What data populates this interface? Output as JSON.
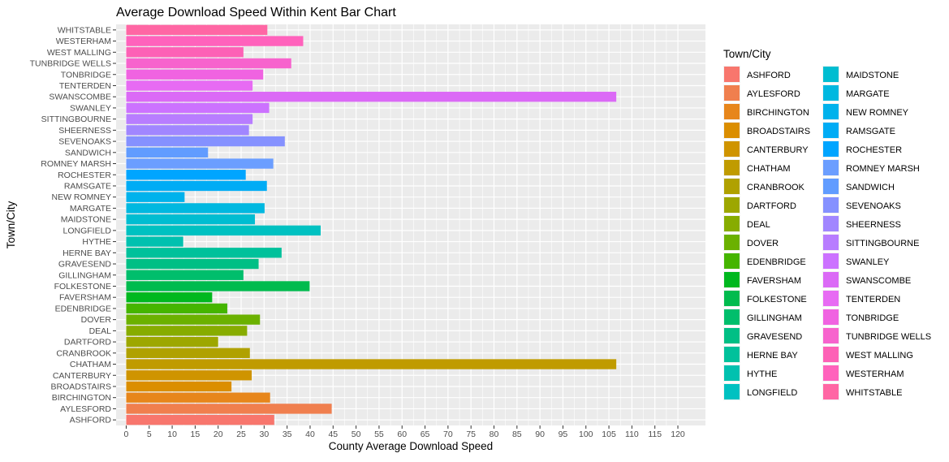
{
  "chart_data": {
    "type": "bar",
    "orientation": "horizontal",
    "title": "Average Download Speed Within Kent Bar Chart",
    "xlabel": "County Average Download Speed",
    "ylabel": "Town/City",
    "xlim": [
      -2.2,
      126
    ],
    "x_ticks": [
      0,
      5,
      10,
      15,
      20,
      25,
      30,
      35,
      40,
      45,
      50,
      55,
      60,
      65,
      70,
      75,
      80,
      85,
      90,
      95,
      100,
      105,
      110,
      115,
      120
    ],
    "grid": true,
    "legend": {
      "title": "Town/City",
      "position": "right",
      "columns": 2
    },
    "categories": [
      "ASHFORD",
      "AYLESFORD",
      "BIRCHINGTON",
      "BROADSTAIRS",
      "CANTERBURY",
      "CHATHAM",
      "CRANBROOK",
      "DARTFORD",
      "DEAL",
      "DOVER",
      "EDENBRIDGE",
      "FAVERSHAM",
      "FOLKESTONE",
      "GILLINGHAM",
      "GRAVESEND",
      "HERNE BAY",
      "HYTHE",
      "LONGFIELD",
      "MAIDSTONE",
      "MARGATE",
      "NEW ROMNEY",
      "RAMSGATE",
      "ROCHESTER",
      "ROMNEY MARSH",
      "SANDWICH",
      "SEVENOAKS",
      "SHEERNESS",
      "SITTINGBOURNE",
      "SWANLEY",
      "SWANSCOMBE",
      "TENTERDEN",
      "TONBRIDGE",
      "TUNBRIDGE WELLS",
      "WEST MALLING",
      "WESTERHAM",
      "WHITSTABLE"
    ],
    "values": [
      32.2,
      44.7,
      31.3,
      22.9,
      27.3,
      106.6,
      26.9,
      20.0,
      26.3,
      29.1,
      22.0,
      18.7,
      39.9,
      25.5,
      28.8,
      33.8,
      12.4,
      42.3,
      28.0,
      30.1,
      12.7,
      30.6,
      26.0,
      32.0,
      17.8,
      34.5,
      26.7,
      27.5,
      31.1,
      106.6,
      27.5,
      29.8,
      35.9,
      25.5,
      38.5,
      30.7
    ],
    "colors": [
      "#F8766D",
      "#F07F4E",
      "#E7861B",
      "#DB8E00",
      "#CF9400",
      "#C09B00",
      "#B0A100",
      "#9DA700",
      "#87AC00",
      "#6BB100",
      "#45B500",
      "#00B81F",
      "#00BB4E",
      "#00BE6C",
      "#00BF85",
      "#00C19B",
      "#00C1AF",
      "#00C1C1",
      "#00BDD1",
      "#00B8E0",
      "#00B2EC",
      "#00ACF5",
      "#00A5FF",
      "#6B9EFF",
      "#619CFF",
      "#8591FF",
      "#A186FF",
      "#B87DFF",
      "#CC72FF",
      "#DB6AF6",
      "#E76BF3",
      "#F063E1",
      "#F763CD",
      "#FD61B6",
      "#FF62BC",
      "#FF66A4"
    ]
  }
}
